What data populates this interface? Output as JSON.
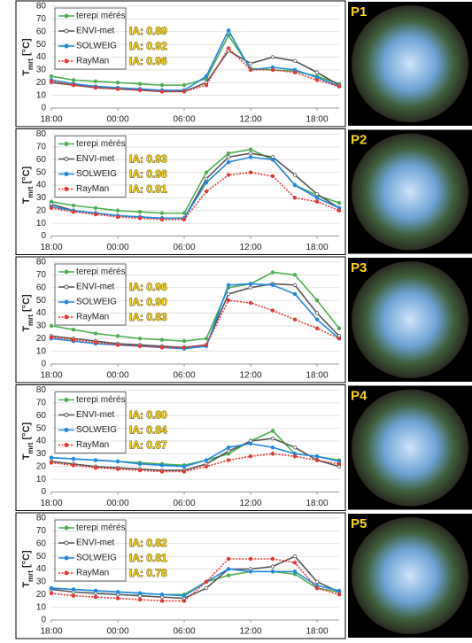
{
  "chart_data": [
    {
      "type": "line",
      "photo_label": "P1",
      "y_label": [
        "T",
        "mrt",
        " [°C]"
      ],
      "x": [
        0,
        2,
        4,
        6,
        8,
        10,
        12,
        14,
        16,
        18,
        20,
        22,
        24,
        26
      ],
      "xlim": [
        0,
        26
      ],
      "xticks": [
        {
          "value": 0,
          "label": "18:00"
        },
        {
          "value": 6,
          "label": "00:00"
        },
        {
          "value": 12,
          "label": "06:00"
        },
        {
          "value": 18,
          "label": "12:00"
        },
        {
          "value": 24,
          "label": "18:00"
        }
      ],
      "ylim": [
        0,
        80
      ],
      "yticks": [
        0,
        10,
        20,
        30,
        40,
        50,
        60,
        70,
        80
      ],
      "grid": true,
      "annotations": [
        "IA: 0.89",
        "IA: 0.92",
        "IA: 0.96"
      ],
      "series": [
        {
          "name": "terepi mérés",
          "color": "#4caf50",
          "values": [
            25,
            22,
            21,
            20,
            19,
            18,
            18,
            23,
            57,
            31,
            30,
            29,
            25,
            19
          ]
        },
        {
          "name": "ENVI-met",
          "color": "#555555",
          "values": [
            20,
            18,
            16,
            15,
            14,
            13,
            13,
            20,
            45,
            35,
            40,
            37,
            28,
            18
          ]
        },
        {
          "name": "SOLWEIG",
          "color": "#1e88e5",
          "values": [
            22,
            19,
            17,
            16,
            15,
            14,
            14,
            25,
            61,
            30,
            32,
            30,
            24,
            17
          ]
        },
        {
          "name": "RayMan",
          "color": "#e53935",
          "values": [
            21,
            18,
            16,
            15,
            14,
            13,
            13,
            18,
            47,
            30,
            30,
            28,
            22,
            17
          ]
        }
      ]
    },
    {
      "type": "line",
      "photo_label": "P2",
      "y_label": [
        "T",
        "mrt",
        " [°C]"
      ],
      "x": [
        0,
        2,
        4,
        6,
        8,
        10,
        12,
        14,
        16,
        18,
        20,
        22,
        24,
        26
      ],
      "xlim": [
        0,
        26
      ],
      "xticks": [
        {
          "value": 0,
          "label": "18:00"
        },
        {
          "value": 6,
          "label": "00:00"
        },
        {
          "value": 12,
          "label": "06:00"
        },
        {
          "value": 18,
          "label": "12:00"
        },
        {
          "value": 24,
          "label": "18:00"
        }
      ],
      "ylim": [
        0,
        80
      ],
      "yticks": [
        0,
        10,
        20,
        30,
        40,
        50,
        60,
        70,
        80
      ],
      "grid": true,
      "annotations": [
        "IA: 0.93",
        "IA: 0.96",
        "IA: 0.91"
      ],
      "series": [
        {
          "name": "terepi mérés",
          "color": "#4caf50",
          "values": [
            27,
            24,
            22,
            20,
            19,
            18,
            18,
            50,
            65,
            68,
            60,
            40,
            32,
            26
          ]
        },
        {
          "name": "ENVI-met",
          "color": "#555555",
          "values": [
            25,
            20,
            18,
            16,
            15,
            14,
            14,
            45,
            62,
            65,
            62,
            48,
            33,
            22
          ]
        },
        {
          "name": "SOLWEIG",
          "color": "#1e88e5",
          "values": [
            23,
            20,
            18,
            16,
            15,
            14,
            14,
            42,
            58,
            62,
            60,
            40,
            30,
            22
          ]
        },
        {
          "name": "RayMan",
          "color": "#e53935",
          "values": [
            22,
            19,
            17,
            15,
            14,
            13,
            13,
            35,
            48,
            50,
            47,
            30,
            27,
            20
          ]
        }
      ]
    },
    {
      "type": "line",
      "photo_label": "P3",
      "y_label": [
        "T",
        "mrt",
        " [°C]"
      ],
      "x": [
        0,
        2,
        4,
        6,
        8,
        10,
        12,
        14,
        16,
        18,
        20,
        22,
        24,
        26
      ],
      "xlim": [
        0,
        26
      ],
      "xticks": [
        {
          "value": 0,
          "label": "18:00"
        },
        {
          "value": 6,
          "label": "00:00"
        },
        {
          "value": 12,
          "label": "06:00"
        },
        {
          "value": 18,
          "label": "12:00"
        },
        {
          "value": 24,
          "label": "18:00"
        }
      ],
      "ylim": [
        0,
        80
      ],
      "yticks": [
        0,
        10,
        20,
        30,
        40,
        50,
        60,
        70,
        80
      ],
      "grid": true,
      "annotations": [
        "IA: 0.96",
        "IA: 0.90",
        "IA: 0.83"
      ],
      "series": [
        {
          "name": "terepi mérés",
          "color": "#4caf50",
          "values": [
            30,
            27,
            24,
            22,
            20,
            19,
            18,
            20,
            60,
            63,
            72,
            70,
            50,
            28
          ]
        },
        {
          "name": "ENVI-met",
          "color": "#555555",
          "values": [
            22,
            20,
            18,
            16,
            15,
            14,
            13,
            15,
            55,
            60,
            63,
            62,
            40,
            22
          ]
        },
        {
          "name": "SOLWEIG",
          "color": "#1e88e5",
          "values": [
            20,
            18,
            16,
            15,
            14,
            13,
            12,
            14,
            62,
            63,
            62,
            55,
            35,
            20
          ]
        },
        {
          "name": "RayMan",
          "color": "#e53935",
          "values": [
            21,
            19,
            17,
            15,
            14,
            13,
            13,
            15,
            50,
            48,
            42,
            35,
            28,
            20
          ]
        }
      ]
    },
    {
      "type": "line",
      "photo_label": "P4",
      "y_label": [
        "T",
        "mrt",
        " [°C]"
      ],
      "x": [
        0,
        2,
        4,
        6,
        8,
        10,
        12,
        14,
        16,
        18,
        20,
        22,
        24,
        26
      ],
      "xlim": [
        0,
        26
      ],
      "xticks": [
        {
          "value": 0,
          "label": "18:00"
        },
        {
          "value": 6,
          "label": "00:00"
        },
        {
          "value": 12,
          "label": "06:00"
        },
        {
          "value": 18,
          "label": "12:00"
        },
        {
          "value": 24,
          "label": "18:00"
        }
      ],
      "ylim": [
        0,
        80
      ],
      "yticks": [
        0,
        10,
        20,
        30,
        40,
        50,
        60,
        70,
        80
      ],
      "grid": true,
      "annotations": [
        "IA: 0.80",
        "IA: 0.84",
        "IA: 0.67"
      ],
      "series": [
        {
          "name": "terepi mérés",
          "color": "#4caf50",
          "values": [
            27,
            26,
            25,
            24,
            23,
            22,
            21,
            25,
            30,
            40,
            48,
            30,
            28,
            25
          ]
        },
        {
          "name": "ENVI-met",
          "color": "#555555",
          "values": [
            24,
            22,
            20,
            19,
            18,
            17,
            17,
            22,
            32,
            40,
            42,
            35,
            25,
            20
          ]
        },
        {
          "name": "SOLWEIG",
          "color": "#1e88e5",
          "values": [
            27,
            26,
            25,
            24,
            22,
            21,
            20,
            25,
            35,
            38,
            35,
            30,
            28,
            24
          ]
        },
        {
          "name": "RayMan",
          "color": "#e53935",
          "values": [
            23,
            21,
            19,
            18,
            17,
            16,
            16,
            20,
            25,
            28,
            30,
            28,
            25,
            22
          ]
        }
      ]
    },
    {
      "type": "line",
      "photo_label": "P5",
      "y_label": [
        "T",
        "mrt",
        " [°C]"
      ],
      "x": [
        0,
        2,
        4,
        6,
        8,
        10,
        12,
        14,
        16,
        18,
        20,
        22,
        24,
        26
      ],
      "xlim": [
        0,
        26
      ],
      "xticks": [
        {
          "value": 0,
          "label": "18:00"
        },
        {
          "value": 6,
          "label": "00:00"
        },
        {
          "value": 12,
          "label": "06:00"
        },
        {
          "value": 18,
          "label": "12:00"
        },
        {
          "value": 24,
          "label": "18:00"
        }
      ],
      "ylim": [
        0,
        80
      ],
      "yticks": [
        0,
        10,
        20,
        30,
        40,
        50,
        60,
        70,
        80
      ],
      "grid": true,
      "annotations": [
        "IA: 0.82",
        "IA: 0.81",
        "IA: 0.78"
      ],
      "series": [
        {
          "name": "terepi mérés",
          "color": "#4caf50",
          "values": [
            25,
            24,
            23,
            22,
            21,
            20,
            20,
            30,
            35,
            38,
            38,
            36,
            25,
            22
          ]
        },
        {
          "name": "ENVI-met",
          "color": "#555555",
          "values": [
            24,
            22,
            21,
            20,
            19,
            18,
            17,
            25,
            40,
            40,
            42,
            50,
            30,
            22
          ]
        },
        {
          "name": "SOLWEIG",
          "color": "#1e88e5",
          "values": [
            25,
            24,
            23,
            22,
            21,
            20,
            19,
            30,
            40,
            38,
            38,
            38,
            27,
            23
          ]
        },
        {
          "name": "RayMan",
          "color": "#e53935",
          "values": [
            21,
            19,
            18,
            17,
            16,
            15,
            15,
            30,
            48,
            48,
            48,
            45,
            25,
            20
          ]
        }
      ]
    }
  ]
}
